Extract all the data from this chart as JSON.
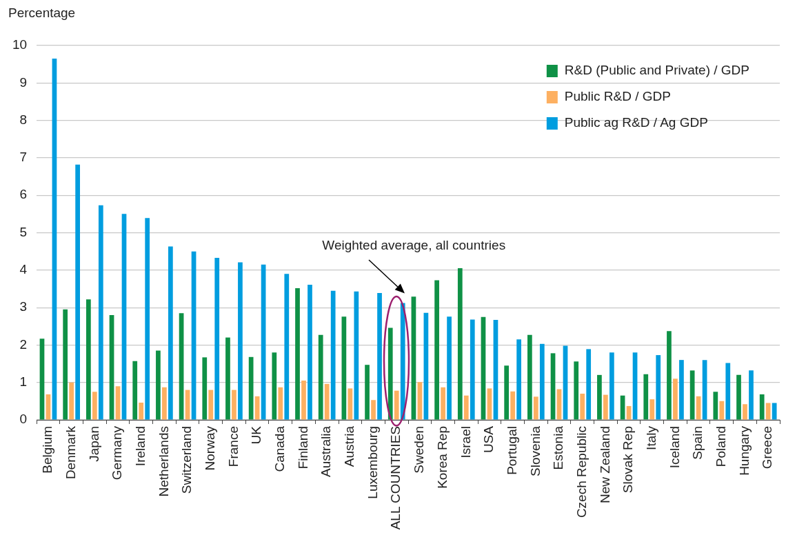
{
  "chart_data": {
    "type": "bar",
    "ylabel": "Percentage",
    "categories": [
      "Belgium",
      "Denmark",
      "Japan",
      "Germany",
      "Ireland",
      "Netherlands",
      "Switzerland",
      "Norway",
      "France",
      "UK",
      "Canada",
      "Finland",
      "Australia",
      "Austria",
      "Luxembourg",
      "ALL COUNTRIES",
      "Sweden",
      "Korea Rep",
      "Israel",
      "USA",
      "Portugal",
      "Slovenia",
      "Estonia",
      "Czech Republic",
      "New Zealand",
      "Slovak Rep",
      "Italy",
      "Iceland",
      "Spain",
      "Poland",
      "Hungary",
      "Greece"
    ],
    "series": [
      {
        "name": "R&D (Public and Private) / GDP",
        "color": "#0f9146",
        "values": [
          2.17,
          2.95,
          3.22,
          2.8,
          1.57,
          1.85,
          2.85,
          1.67,
          2.2,
          1.68,
          1.8,
          3.52,
          2.27,
          2.76,
          1.47,
          2.46,
          3.29,
          3.73,
          4.05,
          2.75,
          1.45,
          2.27,
          1.78,
          1.56,
          1.2,
          0.65,
          1.22,
          2.37,
          1.32,
          0.75,
          1.2,
          0.68
        ]
      },
      {
        "name": "Public R&D / GDP",
        "color": "#fdb061",
        "values": [
          0.68,
          1.0,
          0.75,
          0.9,
          0.46,
          0.87,
          0.8,
          0.8,
          0.8,
          0.63,
          0.87,
          1.05,
          0.96,
          0.84,
          0.53,
          0.78,
          1.01,
          0.87,
          0.65,
          0.84,
          0.76,
          0.62,
          0.82,
          0.7,
          0.67,
          0.37,
          0.55,
          1.1,
          0.63,
          0.5,
          0.42,
          0.45
        ]
      },
      {
        "name": "Public ag R&D / Ag GDP",
        "color": "#009ddf",
        "values": [
          9.65,
          6.82,
          5.73,
          5.5,
          5.39,
          4.63,
          4.5,
          4.33,
          4.21,
          4.15,
          3.9,
          3.61,
          3.45,
          3.43,
          3.39,
          3.12,
          2.86,
          2.76,
          2.68,
          2.67,
          2.15,
          2.03,
          1.98,
          1.89,
          1.8,
          1.8,
          1.73,
          1.6,
          1.6,
          1.52,
          1.32,
          0.45
        ]
      }
    ],
    "ylim": [
      0,
      10
    ],
    "yticks": [
      0,
      1,
      2,
      3,
      4,
      5,
      6,
      7,
      8,
      9,
      10
    ],
    "grid": "y",
    "legend": "top right",
    "annotations": [
      "Weighted average, all countries"
    ]
  }
}
